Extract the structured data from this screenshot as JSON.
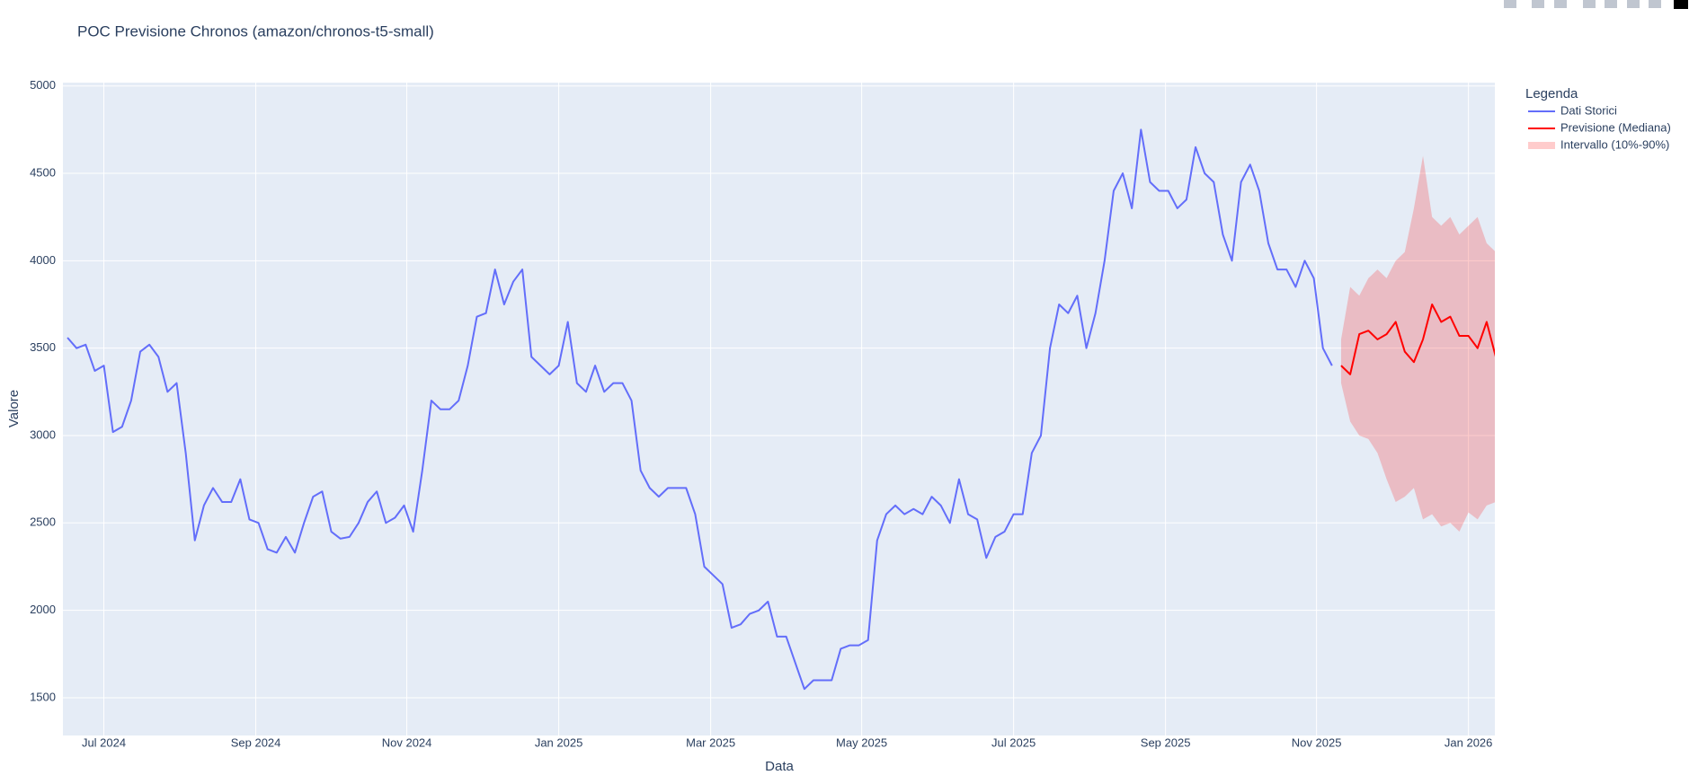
{
  "chart_data": {
    "type": "line",
    "title": "POC Previsione Chronos (amazon/chronos-t5-small)",
    "x_label": "Data",
    "y_label": "Valore",
    "legend_title": "Legenda",
    "grid": true,
    "xlim": [
      2024.455,
      2026.029
    ],
    "ylim": [
      1284,
      5019
    ],
    "xticks": [
      {
        "value": 2024.5,
        "label": "Jul 2024"
      },
      {
        "value": 2024.667,
        "label": "Sep 2024"
      },
      {
        "value": 2024.833,
        "label": "Nov 2024"
      },
      {
        "value": 2025.0,
        "label": "Jan 2025"
      },
      {
        "value": 2025.167,
        "label": "Mar 2025"
      },
      {
        "value": 2025.333,
        "label": "May 2025"
      },
      {
        "value": 2025.5,
        "label": "Jul 2025"
      },
      {
        "value": 2025.667,
        "label": "Sep 2025"
      },
      {
        "value": 2025.833,
        "label": "Nov 2025"
      },
      {
        "value": 2026.0,
        "label": "Jan 2026"
      }
    ],
    "yticks": [
      1500,
      2000,
      2500,
      3000,
      3500,
      4000,
      4500,
      5000
    ],
    "series": [
      {
        "name": "Dati Storici",
        "color": "#636efa",
        "x": [
          2024.46,
          2024.47,
          2024.48,
          2024.49,
          2024.5,
          2024.51,
          2024.52,
          2024.53,
          2024.54,
          2024.55,
          2024.56,
          2024.57,
          2024.58,
          2024.59,
          2024.6,
          2024.61,
          2024.62,
          2024.63,
          2024.64,
          2024.65,
          2024.66,
          2024.67,
          2024.68,
          2024.69,
          2024.7,
          2024.71,
          2024.72,
          2024.73,
          2024.74,
          2024.75,
          2024.76,
          2024.77,
          2024.78,
          2024.79,
          2024.8,
          2024.81,
          2024.82,
          2024.83,
          2024.84,
          2024.85,
          2024.86,
          2024.87,
          2024.88,
          2024.89,
          2024.9,
          2024.91,
          2024.92,
          2024.93,
          2024.94,
          2024.95,
          2024.96,
          2024.97,
          2024.98,
          2024.99,
          2025.0,
          2025.01,
          2025.02,
          2025.03,
          2025.04,
          2025.05,
          2025.06,
          2025.07,
          2025.08,
          2025.09,
          2025.1,
          2025.11,
          2025.12,
          2025.13,
          2025.14,
          2025.15,
          2025.16,
          2025.17,
          2025.18,
          2025.19,
          2025.2,
          2025.21,
          2025.22,
          2025.23,
          2025.24,
          2025.25,
          2025.26,
          2025.27,
          2025.28,
          2025.29,
          2025.3,
          2025.31,
          2025.32,
          2025.33,
          2025.34,
          2025.35,
          2025.36,
          2025.37,
          2025.38,
          2025.39,
          2025.4,
          2025.41,
          2025.42,
          2025.43,
          2025.44,
          2025.45,
          2025.46,
          2025.47,
          2025.48,
          2025.49,
          2025.5,
          2025.51,
          2025.52,
          2025.53,
          2025.54,
          2025.55,
          2025.56,
          2025.57,
          2025.58,
          2025.59,
          2025.6,
          2025.61,
          2025.62,
          2025.63,
          2025.64,
          2025.65,
          2025.66,
          2025.67,
          2025.68,
          2025.69,
          2025.7,
          2025.71,
          2025.72,
          2025.73,
          2025.74,
          2025.75,
          2025.76,
          2025.77,
          2025.78,
          2025.79,
          2025.8,
          2025.81,
          2025.82,
          2025.83,
          2025.84,
          2025.85
        ],
        "values": [
          3560,
          3500,
          3520,
          3370,
          3400,
          3020,
          3050,
          3200,
          3480,
          3520,
          3450,
          3250,
          3300,
          2900,
          2400,
          2600,
          2700,
          2620,
          2620,
          2750,
          2520,
          2500,
          2350,
          2330,
          2420,
          2330,
          2500,
          2650,
          2680,
          2450,
          2410,
          2420,
          2500,
          2620,
          2680,
          2500,
          2530,
          2600,
          2450,
          2800,
          3200,
          3150,
          3150,
          3200,
          3400,
          3680,
          3700,
          3950,
          3750,
          3880,
          3950,
          3450,
          3400,
          3350,
          3400,
          3650,
          3300,
          3250,
          3400,
          3250,
          3300,
          3300,
          3200,
          2800,
          2700,
          2650,
          2700,
          2700,
          2700,
          2550,
          2250,
          2200,
          2150,
          1900,
          1920,
          1980,
          2000,
          2050,
          1850,
          1850,
          1700,
          1550,
          1600,
          1600,
          1600,
          1780,
          1800,
          1800,
          1830,
          2400,
          2550,
          2600,
          2550,
          2580,
          2550,
          2650,
          2600,
          2500,
          2750,
          2550,
          2520,
          2300,
          2420,
          2450,
          2550,
          2550,
          2900,
          3000,
          3500,
          3750,
          3700,
          3800,
          3500,
          3700,
          4000,
          4400,
          4500,
          4300,
          4750,
          4450,
          4400,
          4400,
          4300,
          4350,
          4650,
          4500,
          4450,
          4150,
          4000,
          4450,
          4550,
          4400,
          4100,
          3950,
          3950,
          3850,
          4000,
          3900,
          3500,
          3400
        ]
      },
      {
        "name": "Previsione (Mediana)",
        "color": "#ff0000",
        "x": [
          2025.86,
          2025.87,
          2025.88,
          2025.89,
          2025.9,
          2025.91,
          2025.92,
          2025.93,
          2025.94,
          2025.95,
          2025.96,
          2025.97,
          2025.98,
          2025.99,
          2026.0,
          2026.01,
          2026.02,
          2026.03
        ],
        "values": [
          3400,
          3350,
          3580,
          3600,
          3550,
          3580,
          3650,
          3480,
          3420,
          3550,
          3750,
          3650,
          3680,
          3570,
          3570,
          3500,
          3650,
          3450
        ]
      },
      {
        "name": "Intervallo (10%-90%)",
        "color": "rgba(255,0,0,0.2)",
        "x": [
          2025.86,
          2025.87,
          2025.88,
          2025.89,
          2025.9,
          2025.91,
          2025.92,
          2025.93,
          2025.94,
          2025.95,
          2025.96,
          2025.97,
          2025.98,
          2025.99,
          2026.0,
          2026.01,
          2026.02,
          2026.03
        ],
        "upper": [
          3550,
          3850,
          3800,
          3900,
          3950,
          3900,
          4000,
          4050,
          4300,
          4600,
          4250,
          4200,
          4250,
          4150,
          4200,
          4250,
          4100,
          4050
        ],
        "lower": [
          3300,
          3080,
          3000,
          2980,
          2900,
          2750,
          2620,
          2650,
          2700,
          2520,
          2550,
          2480,
          2500,
          2450,
          2560,
          2520,
          2600,
          2620
        ]
      }
    ]
  }
}
